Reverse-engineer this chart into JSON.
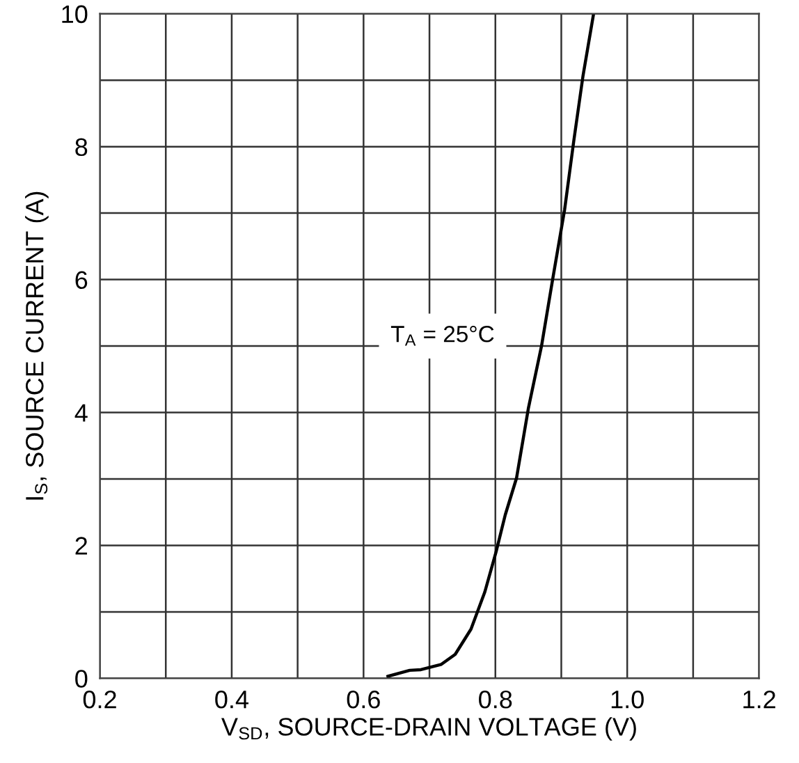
{
  "chart_data": {
    "type": "line",
    "xlabel": "V$_{SD}$, SOURCE-DRAIN VOLTAGE (V)",
    "ylabel": "I$_{S}$, SOURCE CURRENT (A)",
    "annotations": [
      "T$_{A}$ = 25°C"
    ],
    "series": [
      {
        "color": "#000000",
        "x": [
          0.637,
          0.67,
          0.687,
          0.718,
          0.739,
          0.763,
          0.784,
          0.801,
          0.815,
          0.832,
          0.85,
          0.87,
          0.887,
          0.905,
          0.919,
          0.933,
          0.949
        ],
        "values": [
          0.03,
          0.12,
          0.13,
          0.21,
          0.36,
          0.74,
          1.3,
          1.9,
          2.46,
          3.01,
          4.06,
          5.0,
          6.01,
          7.05,
          8.09,
          9.07,
          10.0
        ]
      }
    ],
    "xlim": [
      0.2,
      1.2
    ],
    "xticks": [
      {
        "value": 0.2,
        "label": "0.2"
      },
      {
        "value": 0.3,
        "label": null
      },
      {
        "value": 0.4,
        "label": "0.4"
      },
      {
        "value": 0.5,
        "label": null
      },
      {
        "value": 0.6,
        "label": "0.6"
      },
      {
        "value": 0.7,
        "label": null
      },
      {
        "value": 0.8,
        "label": "0.8"
      },
      {
        "value": 0.9,
        "label": null
      },
      {
        "value": 1.0,
        "label": "1.0"
      },
      {
        "value": 1.1,
        "label": null
      },
      {
        "value": 1.2,
        "label": "1.2"
      }
    ],
    "ylim": [
      0,
      10
    ],
    "yticks": [
      0,
      {
        "value": 1,
        "label": null
      },
      2,
      {
        "value": 3,
        "label": null
      },
      4,
      {
        "value": 5,
        "label": null
      },
      6,
      {
        "value": 7,
        "label": null
      },
      8,
      {
        "value": 9,
        "label": null
      },
      10
    ],
    "grid": true
  }
}
